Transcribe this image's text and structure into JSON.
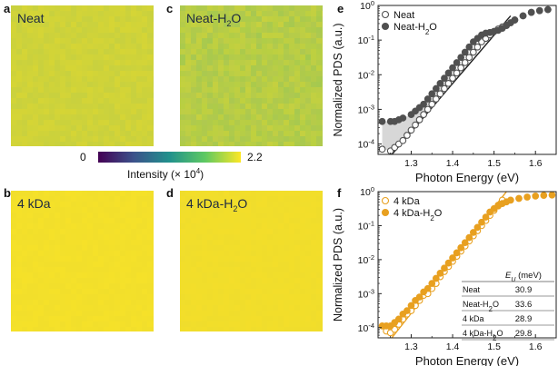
{
  "panel_labels": {
    "a": "a",
    "b": "b",
    "c": "c",
    "d": "d",
    "e": "e",
    "f": "f"
  },
  "maps": [
    {
      "id": "a",
      "title": "Neat",
      "title_sub": "",
      "title_after": "",
      "color": "#cfd33a"
    },
    {
      "id": "c",
      "title": "Neat-H",
      "title_sub": "2",
      "title_after": "O",
      "color": "#b6cd47"
    },
    {
      "id": "b",
      "title": "4 kDa",
      "title_sub": "",
      "title_after": "",
      "color": "#f3e02a"
    },
    {
      "id": "d",
      "title": "4 kDa-H",
      "title_sub": "2",
      "title_after": "O",
      "color": "#f1de2b"
    }
  ],
  "colorbar": {
    "min_label": "0",
    "max_label": "2.2",
    "label": "Intensity (× 10",
    "label_exp": "4",
    "label_end": ")",
    "colormap": "viridis"
  },
  "chart_data": [
    {
      "panel": "e",
      "type": "scatter",
      "xlabel": "Photon Energy (eV)",
      "ylabel": "Normalized PDS (a.u.)",
      "xlim": [
        1.22,
        1.65
      ],
      "ylog": true,
      "ylim_exp": [
        -4.3,
        0
      ],
      "xticks": [
        "1.3",
        "1.4",
        "1.5",
        "1.6"
      ],
      "xtick_values": [
        1.3,
        1.4,
        1.5,
        1.6
      ],
      "yticks": [
        {
          "base": "10",
          "exp": "-4",
          "value": -4
        },
        {
          "base": "10",
          "exp": "-3",
          "value": -3
        },
        {
          "base": "10",
          "exp": "-2",
          "value": -2
        },
        {
          "base": "10",
          "exp": "-1",
          "value": -1
        },
        {
          "base": "10",
          "exp": "0",
          "value": 0
        }
      ],
      "shaded_region": true,
      "series": [
        {
          "name": "Neat",
          "name_sub": "",
          "name_after": "",
          "marker": "open",
          "color": "#505050",
          "x": [
            1.23,
            1.25,
            1.26,
            1.27,
            1.28,
            1.29,
            1.3,
            1.31,
            1.32,
            1.33,
            1.34,
            1.35,
            1.36,
            1.37,
            1.38,
            1.39,
            1.4,
            1.41,
            1.42,
            1.43,
            1.44,
            1.45,
            1.46,
            1.47,
            1.48,
            1.49,
            1.5,
            1.51,
            1.52,
            1.53,
            1.54,
            1.55,
            1.57,
            1.59,
            1.61,
            1.63
          ],
          "log10y": [
            -4.15,
            -4.2,
            -4.1,
            -4.0,
            -3.9,
            -3.75,
            -3.6,
            -3.45,
            -3.3,
            -3.15,
            -3.0,
            -2.85,
            -2.7,
            -2.55,
            -2.4,
            -2.25,
            -2.1,
            -1.95,
            -1.8,
            -1.65,
            -1.5,
            -1.35,
            -1.2,
            -1.05,
            -0.95,
            -0.85,
            -0.75,
            -0.68,
            -0.62,
            -0.57,
            -0.5,
            -0.42,
            -0.3,
            -0.2,
            -0.15,
            -0.12
          ]
        },
        {
          "name": "Neat-H",
          "name_sub": "2",
          "name_after": "O",
          "marker": "filled",
          "color": "#505050",
          "x": [
            1.23,
            1.25,
            1.26,
            1.27,
            1.28,
            1.3,
            1.31,
            1.32,
            1.33,
            1.34,
            1.35,
            1.36,
            1.37,
            1.38,
            1.39,
            1.4,
            1.41,
            1.42,
            1.43,
            1.44,
            1.45,
            1.46,
            1.47,
            1.48,
            1.49,
            1.5,
            1.51,
            1.52,
            1.53,
            1.54,
            1.55,
            1.57,
            1.59,
            1.61,
            1.63
          ],
          "log10y": [
            -3.35,
            -3.35,
            -3.35,
            -3.3,
            -3.25,
            -3.15,
            -3.05,
            -2.95,
            -2.85,
            -2.7,
            -2.55,
            -2.4,
            -2.25,
            -2.1,
            -1.95,
            -1.8,
            -1.65,
            -1.5,
            -1.35,
            -1.2,
            -1.05,
            -0.95,
            -0.85,
            -0.8,
            -0.78,
            -0.75,
            -0.72,
            -0.66,
            -0.58,
            -0.5,
            -0.42,
            -0.3,
            -0.2,
            -0.15,
            -0.12
          ]
        }
      ],
      "fit": {
        "x": [
          1.25,
          1.54
        ],
        "log10y": [
          -4.35,
          -0.3
        ],
        "color": "#222222"
      }
    },
    {
      "panel": "f",
      "type": "scatter",
      "xlabel": "Photon Energy (eV)",
      "ylabel": "Normalized PDS (a.u.)",
      "xlim": [
        1.22,
        1.65
      ],
      "ylog": true,
      "ylim_exp": [
        -4.3,
        0
      ],
      "xticks": [
        "1.3",
        "1.4",
        "1.5",
        "1.6"
      ],
      "xtick_values": [
        1.3,
        1.4,
        1.5,
        1.6
      ],
      "yticks": [
        {
          "base": "10",
          "exp": "-4",
          "value": -4
        },
        {
          "base": "10",
          "exp": "-3",
          "value": -3
        },
        {
          "base": "10",
          "exp": "-2",
          "value": -2
        },
        {
          "base": "10",
          "exp": "-1",
          "value": -1
        },
        {
          "base": "10",
          "exp": "0",
          "value": 0
        }
      ],
      "series": [
        {
          "name": "4 kDa",
          "name_sub": "",
          "name_after": "",
          "marker": "open",
          "color": "#e8a020",
          "x": [
            1.24,
            1.25,
            1.26,
            1.27,
            1.28,
            1.29,
            1.3,
            1.31,
            1.32,
            1.33,
            1.34,
            1.35,
            1.36,
            1.37,
            1.38,
            1.39,
            1.4,
            1.41,
            1.42,
            1.43,
            1.44,
            1.45,
            1.46,
            1.47,
            1.48,
            1.49,
            1.5,
            1.51,
            1.52
          ],
          "log10y": [
            -4.1,
            -4.15,
            -4.05,
            -3.9,
            -3.75,
            -3.6,
            -3.5,
            -3.35,
            -3.2,
            -3.05,
            -3.0,
            -2.85,
            -2.7,
            -2.5,
            -2.35,
            -2.2,
            -2.05,
            -1.9,
            -1.75,
            -1.6,
            -1.45,
            -1.3,
            -1.15,
            -1.0,
            -0.85,
            -0.7,
            -0.55,
            -0.4,
            -0.25
          ]
        },
        {
          "name": "4 kDa-H",
          "name_sub": "2",
          "name_after": "O",
          "marker": "filled",
          "color": "#e8a020",
          "x": [
            1.23,
            1.24,
            1.25,
            1.26,
            1.27,
            1.28,
            1.29,
            1.3,
            1.31,
            1.32,
            1.33,
            1.34,
            1.35,
            1.36,
            1.37,
            1.38,
            1.39,
            1.4,
            1.41,
            1.42,
            1.43,
            1.44,
            1.45,
            1.46,
            1.47,
            1.48,
            1.49,
            1.5,
            1.51,
            1.52,
            1.53,
            1.54,
            1.56,
            1.58,
            1.6,
            1.62,
            1.64
          ],
          "log10y": [
            -3.95,
            -3.95,
            -3.95,
            -3.85,
            -3.75,
            -3.6,
            -3.5,
            -3.35,
            -3.2,
            -3.1,
            -2.95,
            -2.85,
            -2.7,
            -2.55,
            -2.4,
            -2.25,
            -2.1,
            -1.95,
            -1.8,
            -1.65,
            -1.5,
            -1.35,
            -1.2,
            -1.05,
            -0.9,
            -0.75,
            -0.6,
            -0.5,
            -0.42,
            -0.35,
            -0.3,
            -0.25,
            -0.2,
            -0.16,
            -0.13,
            -0.11,
            -0.1
          ]
        }
      ],
      "fit": {
        "x": [
          1.25,
          1.53
        ],
        "log10y": [
          -4.35,
          0
        ],
        "color": "#e8a020"
      },
      "table": {
        "header_var": "E",
        "header_sub": "U",
        "header_unit": " (meV)",
        "rows": [
          {
            "label": "Neat",
            "label_sub": "",
            "label_after": "",
            "value": "30.9"
          },
          {
            "label": "Neat-H",
            "label_sub": "2",
            "label_after": "O",
            "value": "33.6"
          },
          {
            "label": "4 kDa",
            "label_sub": "",
            "label_after": "",
            "value": "28.9"
          },
          {
            "label": "4 kDa-H",
            "label_sub": "2",
            "label_after": "O",
            "value": "29.8"
          }
        ]
      }
    }
  ]
}
